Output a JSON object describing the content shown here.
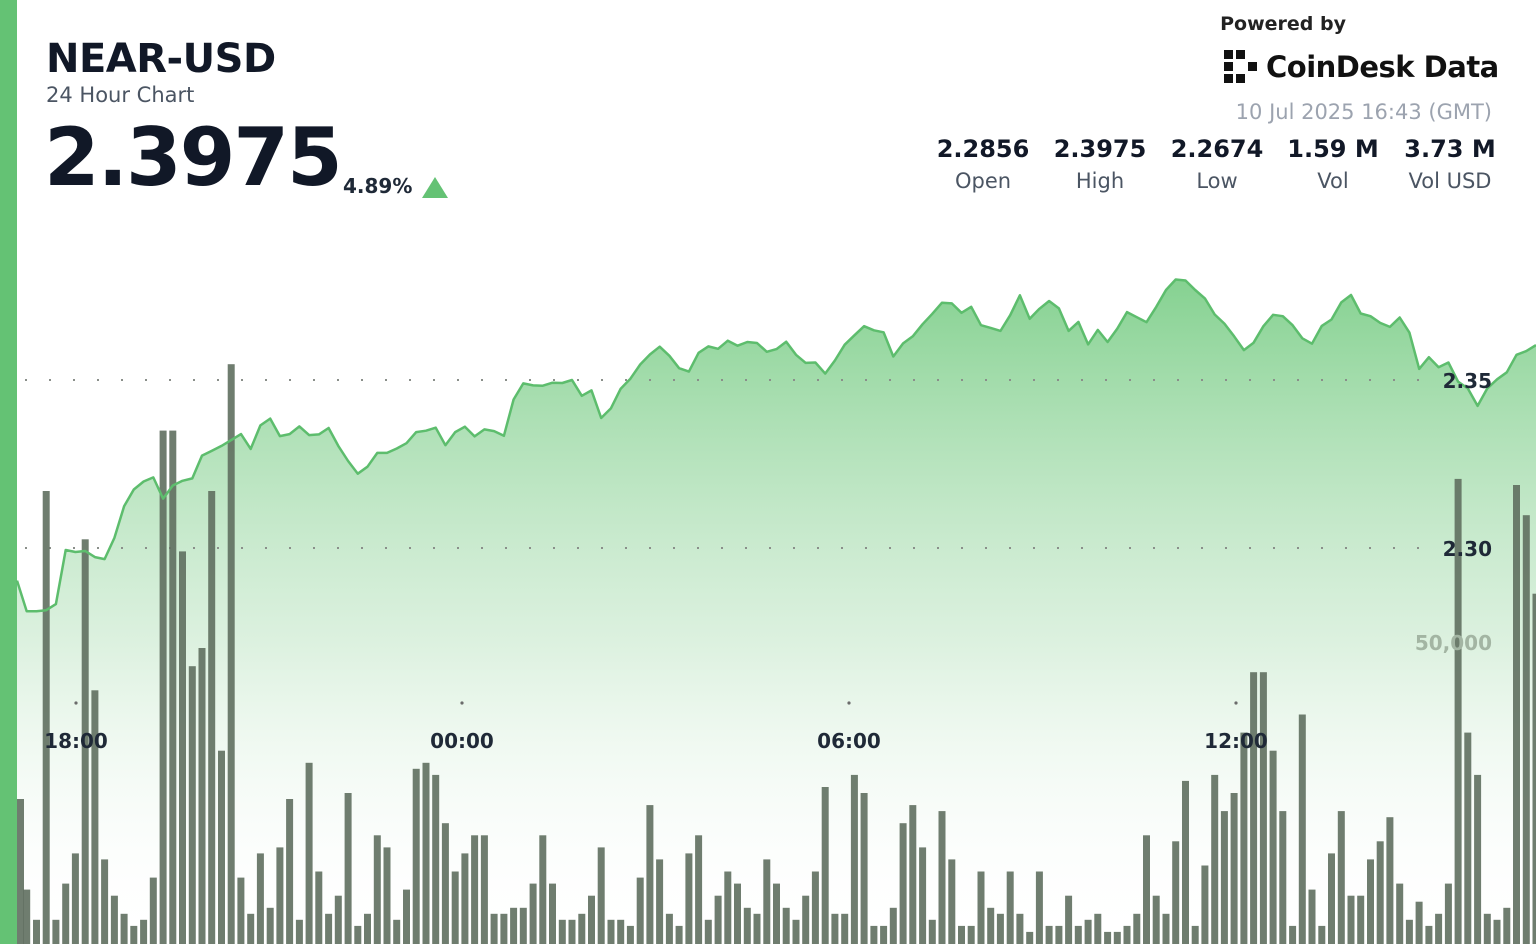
{
  "header": {
    "symbol": "NEAR-USD",
    "subtitle": "24 Hour Chart",
    "price": "2.3975",
    "change_pct": "4.89%",
    "direction": "up",
    "powered_by": "Powered by",
    "brand": "CoinDesk Data",
    "datetime": "10 Jul 2025 16:43 (GMT)"
  },
  "stats": [
    {
      "value": "2.2856",
      "label": "Open"
    },
    {
      "value": "2.3975",
      "label": "High"
    },
    {
      "value": "2.2674",
      "label": "Low"
    },
    {
      "value": "1.59 M",
      "label": "Vol"
    },
    {
      "value": "3.73 M",
      "label": "Vol USD"
    }
  ],
  "colors": {
    "accent": "#64c274",
    "line": "#5dbd6d",
    "volume": "#5f6f5f",
    "text": "#111827",
    "muted": "#9ca3af"
  },
  "chart_data": {
    "type": "area",
    "price_gridlines": [
      2.35,
      2.3
    ],
    "price_gridline_labels": [
      "2.35",
      "2.30"
    ],
    "volume_gridline": 50000,
    "volume_gridline_label": "50,000",
    "x_ticks": [
      "18:00",
      "00:00",
      "06:00",
      "12:00"
    ],
    "price": [
      2.2903,
      2.2812,
      2.2812,
      2.2815,
      2.2833,
      2.2994,
      2.2988,
      2.2991,
      2.2973,
      2.2967,
      2.303,
      2.3124,
      2.3174,
      2.3198,
      2.321,
      2.3147,
      2.3186,
      2.32,
      2.3207,
      2.3275,
      2.3289,
      2.3304,
      2.3321,
      2.3339,
      2.3295,
      2.3365,
      2.3385,
      2.3333,
      2.3339,
      2.3362,
      2.3336,
      2.3338,
      2.3357,
      2.3304,
      2.3259,
      2.3221,
      2.3242,
      2.3283,
      2.3283,
      2.3296,
      2.3312,
      2.3345,
      2.3349,
      2.3358,
      2.3306,
      2.3345,
      2.3361,
      2.3332,
      2.3353,
      2.3348,
      2.3334,
      2.3442,
      2.349,
      2.3484,
      2.3483,
      2.3492,
      2.3491,
      2.35,
      2.3453,
      2.3469,
      2.3387,
      2.3416,
      2.3474,
      2.3504,
      2.3546,
      2.3576,
      2.3599,
      2.3572,
      2.3535,
      2.3525,
      2.3581,
      2.36,
      2.3593,
      2.3617,
      2.3602,
      2.3613,
      2.361,
      2.3584,
      2.3592,
      2.3614,
      2.3575,
      2.3551,
      2.3552,
      2.3519,
      2.3558,
      2.3605,
      2.3633,
      2.366,
      2.3648,
      2.3642,
      2.357,
      2.3609,
      2.363,
      2.3666,
      2.3697,
      2.373,
      2.3728,
      2.37,
      2.3718,
      2.3663,
      2.3655,
      2.3646,
      2.3693,
      2.3752,
      2.3682,
      2.3712,
      2.3735,
      2.3713,
      2.3646,
      2.3673,
      2.3606,
      2.3649,
      2.3613,
      2.3653,
      2.3702,
      2.3687,
      2.3672,
      2.3718,
      2.3768,
      2.3799,
      2.3796,
      2.3768,
      2.3743,
      2.3695,
      2.3668,
      2.363,
      2.3589,
      2.3611,
      2.366,
      2.3694,
      2.369,
      2.3663,
      2.3624,
      2.3608,
      2.3661,
      2.368,
      2.3731,
      2.3753,
      2.3698,
      2.369,
      2.367,
      2.3658,
      2.3686,
      2.3641,
      2.3533,
      2.3568,
      2.3538,
      2.3552,
      2.3495,
      2.3475,
      2.3423,
      2.3475,
      2.3502,
      2.3523,
      2.3575,
      2.3586,
      2.3604
    ],
    "volume": [
      24000,
      9000,
      4000,
      75000,
      4000,
      10000,
      15000,
      67000,
      42000,
      14000,
      8000,
      5000,
      3000,
      4000,
      11000,
      85000,
      85000,
      65000,
      46000,
      49000,
      75000,
      32000,
      96000,
      11000,
      5000,
      15000,
      6000,
      16000,
      24000,
      4000,
      30000,
      12000,
      5000,
      8000,
      25000,
      3000,
      5000,
      18000,
      16000,
      4000,
      9000,
      29000,
      30000,
      28000,
      20000,
      12000,
      15000,
      18000,
      18000,
      5000,
      5000,
      6000,
      6000,
      10000,
      18000,
      10000,
      4000,
      4000,
      5000,
      8000,
      16000,
      4000,
      4000,
      3000,
      11000,
      23000,
      14000,
      5000,
      3000,
      15000,
      18000,
      4000,
      8000,
      12000,
      10000,
      6000,
      5000,
      14000,
      10000,
      6000,
      4000,
      8000,
      12000,
      26000,
      5000,
      5000,
      28000,
      25000,
      3000,
      3000,
      6000,
      20000,
      23000,
      16000,
      4000,
      22000,
      14000,
      3000,
      3000,
      12000,
      6000,
      5000,
      12000,
      5000,
      2000,
      12000,
      3000,
      3000,
      8000,
      3000,
      4000,
      5000,
      2000,
      2000,
      3000,
      5000,
      18000,
      8000,
      5000,
      17000,
      27000,
      3000,
      13000,
      28000,
      22000,
      25000,
      35000,
      45000,
      45000,
      32000,
      22000,
      3000,
      38000,
      9000,
      3000,
      15000,
      22000,
      8000,
      8000,
      14000,
      17000,
      21000,
      10000,
      4000,
      7000,
      3000,
      5000,
      10000,
      77000,
      35000,
      28000,
      5000,
      4000,
      6000,
      76000,
      71000,
      58000
    ]
  }
}
